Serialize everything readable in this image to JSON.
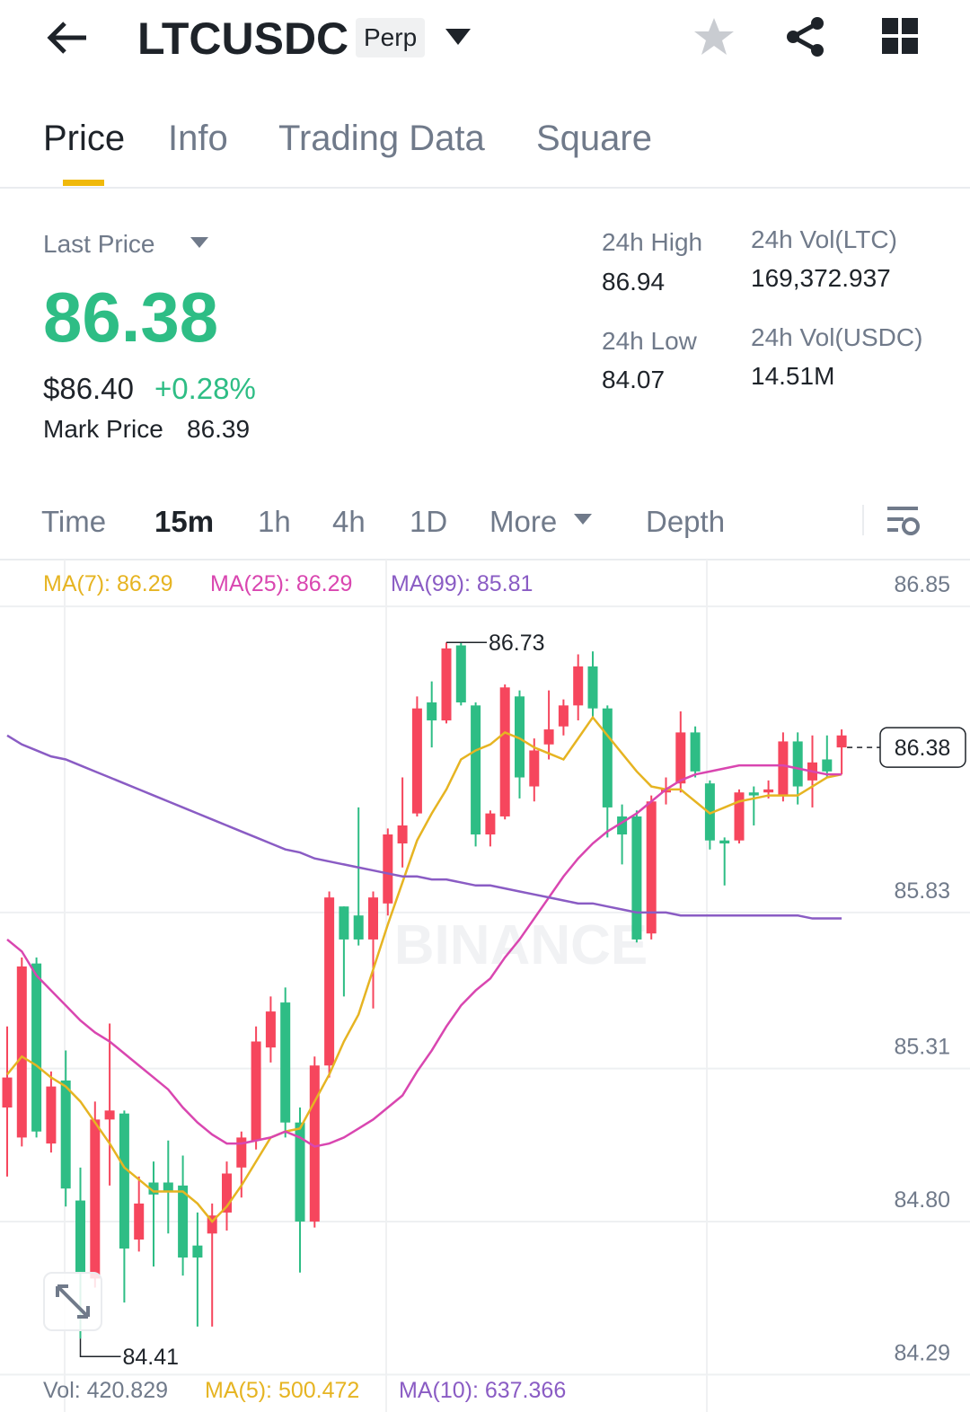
{
  "header": {
    "symbol": "LTCUSDC",
    "badge": "Perp"
  },
  "tabs": [
    "Price",
    "Info",
    "Trading Data",
    "Square"
  ],
  "stats": {
    "last_price_label": "Last Price",
    "last_price": "86.38",
    "usd_price": "$86.40",
    "change": "+0.28%",
    "mark_price_label": "Mark Price",
    "mark_price": "86.39",
    "high_label": "24h High",
    "high": "86.94",
    "low_label": "24h Low",
    "low": "84.07",
    "vol_ltc_label": "24h Vol(LTC)",
    "vol_ltc": "169,372.937",
    "vol_usdc_label": "24h Vol(USDC)",
    "vol_usdc": "14.51M"
  },
  "intervals": [
    "Time",
    "15m",
    "1h",
    "4h",
    "1D",
    "More",
    "Depth"
  ],
  "chart_data": {
    "type": "candlestick",
    "watermark": "BINANCE",
    "up_color": "#2ebd85",
    "down_color": "#f6465d",
    "ylim": [
      84.27,
      87.0
    ],
    "yticks": [
      {
        "value": 84.29,
        "label": "84.29"
      },
      {
        "value": 84.8,
        "label": "84.80"
      },
      {
        "value": 85.31,
        "label": "85.31"
      },
      {
        "value": 85.83,
        "label": "85.83"
      },
      {
        "value": 86.85,
        "label": "86.85"
      }
    ],
    "grid": true,
    "open": [
      85.28,
      85.65,
      85.1,
      85.25,
      84.91,
      84.63,
      85.14,
      85.17,
      84.71,
      84.86,
      84.89,
      84.9,
      84.68,
      84.68,
      84.82,
      84.96,
      85.08,
      85.4,
      85.5,
      85.13,
      84.8,
      85.32,
      85.88,
      85.74,
      85.74,
      85.88,
      86.09,
      86.12,
      86.51,
      86.47,
      86.71,
      86.53,
      86.09,
      86.16,
      86.58,
      86.28,
      86.37,
      86.44,
      86.52,
      86.65,
      86.51,
      86.18,
      86.09,
      85.74,
      86.2,
      86.24,
      86.43,
      86.3,
      86.07,
      86.06,
      86.23,
      86.22,
      86.24,
      86.4,
      86.25,
      86.33,
      86.3,
      86.42
    ],
    "high": [
      85.45,
      85.68,
      85.68,
      85.3,
      85.37,
      84.98,
      85.2,
      85.46,
      85.17,
      84.95,
      85.0,
      85.07,
      85.02,
      84.83,
      84.86,
      85.0,
      85.1,
      85.45,
      85.55,
      85.58,
      85.18,
      85.35,
      85.9,
      85.85,
      86.18,
      85.9,
      86.11,
      86.28,
      86.55,
      86.6,
      86.73,
      86.73,
      86.53,
      86.17,
      86.59,
      86.57,
      86.41,
      86.57,
      86.54,
      86.69,
      86.7,
      86.52,
      86.19,
      86.17,
      86.22,
      86.28,
      86.5,
      86.45,
      86.27,
      86.08,
      86.24,
      86.25,
      86.27,
      86.43,
      86.43,
      86.42,
      86.42,
      86.44
    ],
    "low": [
      84.95,
      85.05,
      85.08,
      85.03,
      84.85,
      84.41,
      84.58,
      84.92,
      84.53,
      84.7,
      84.65,
      84.76,
      84.62,
      84.45,
      84.45,
      84.77,
      84.88,
      85.04,
      85.33,
      85.08,
      84.63,
      84.78,
      85.28,
      85.55,
      85.72,
      85.51,
      85.82,
      85.98,
      86.15,
      86.38,
      86.46,
      86.52,
      86.05,
      86.05,
      86.14,
      86.21,
      86.2,
      86.34,
      86.42,
      86.47,
      86.48,
      86.08,
      85.99,
      85.73,
      85.74,
      86.19,
      86.23,
      86.28,
      86.04,
      85.92,
      86.06,
      86.12,
      86.21,
      86.2,
      86.19,
      86.18,
      86.28,
      86.29
    ],
    "close": [
      85.18,
      85.08,
      85.66,
      85.06,
      85.27,
      84.87,
      84.61,
      85.14,
      85.16,
      84.74,
      84.93,
      84.93,
      84.92,
      84.72,
      84.76,
      84.83,
      84.98,
      85.07,
      85.38,
      85.53,
      85.13,
      84.8,
      85.32,
      85.85,
      85.82,
      85.74,
      85.86,
      86.06,
      86.16,
      86.53,
      86.47,
      86.72,
      86.52,
      86.09,
      86.15,
      86.55,
      86.25,
      86.39,
      86.45,
      86.52,
      86.65,
      86.51,
      86.15,
      86.15,
      85.76,
      86.23,
      86.26,
      86.43,
      86.26,
      86.07,
      86.07,
      86.23,
      86.23,
      86.22,
      86.4,
      86.27,
      86.34,
      86.38
    ],
    "series": [
      {
        "name": "MA(7): 86.29",
        "color": "#e6b422",
        "values": [
          85.29,
          85.35,
          85.32,
          85.28,
          85.25,
          85.2,
          85.13,
          85.06,
          84.98,
          84.94,
          84.9,
          84.9,
          84.9,
          84.86,
          84.8,
          84.85,
          84.92,
          85.0,
          85.08,
          85.1,
          85.11,
          85.2,
          85.29,
          85.4,
          85.49,
          85.64,
          85.79,
          85.93,
          86.07,
          86.16,
          86.24,
          86.34,
          86.37,
          86.39,
          86.43,
          86.41,
          86.38,
          86.36,
          86.34,
          86.41,
          86.48,
          86.42,
          86.36,
          86.3,
          86.25,
          86.24,
          86.24,
          86.2,
          86.16,
          86.18,
          86.2,
          86.21,
          86.22,
          86.22,
          86.22,
          86.25,
          86.28,
          86.29
        ]
      },
      {
        "name": "MA(25): 86.29",
        "color": "#d946b0",
        "values": [
          85.74,
          85.7,
          85.62,
          85.57,
          85.52,
          85.47,
          85.43,
          85.4,
          85.36,
          85.32,
          85.28,
          85.24,
          85.18,
          85.13,
          85.09,
          85.06,
          85.06,
          85.07,
          85.08,
          85.1,
          85.08,
          85.05,
          85.06,
          85.08,
          85.11,
          85.14,
          85.18,
          85.22,
          85.3,
          85.37,
          85.45,
          85.52,
          85.57,
          85.61,
          85.68,
          85.74,
          85.81,
          85.88,
          85.95,
          86.01,
          86.06,
          86.1,
          86.13,
          86.16,
          86.2,
          86.24,
          86.27,
          86.29,
          86.3,
          86.31,
          86.32,
          86.32,
          86.32,
          86.32,
          86.31,
          86.3,
          86.29,
          86.29
        ]
      },
      {
        "name": "MA(99): 85.81",
        "color": "#8a5cc4",
        "values": [
          86.42,
          86.39,
          86.37,
          86.35,
          86.34,
          86.32,
          86.3,
          86.28,
          86.26,
          86.24,
          86.22,
          86.2,
          86.18,
          86.16,
          86.14,
          86.12,
          86.1,
          86.08,
          86.06,
          86.04,
          86.03,
          86.01,
          86.0,
          85.99,
          85.98,
          85.97,
          85.96,
          85.95,
          85.95,
          85.94,
          85.94,
          85.93,
          85.92,
          85.92,
          85.91,
          85.9,
          85.89,
          85.88,
          85.87,
          85.86,
          85.86,
          85.85,
          85.84,
          85.83,
          85.83,
          85.83,
          85.82,
          85.82,
          85.82,
          85.82,
          85.82,
          85.82,
          85.82,
          85.82,
          85.82,
          85.81,
          85.81,
          85.81
        ]
      }
    ],
    "max_label": "86.73",
    "min_label": "84.41",
    "price_tag": "86.38",
    "volume_legend": [
      "Vol: 420.829",
      "MA(5): 500.472",
      "MA(10): 637.366"
    ]
  }
}
